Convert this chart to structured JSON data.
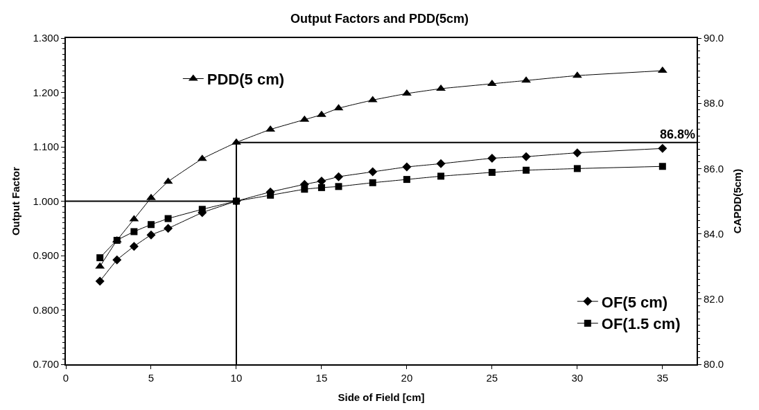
{
  "chart_data": {
    "type": "line",
    "title": "Output Factors and PDD(5cm)",
    "xlabel": "Side of Field [cm]",
    "ylabel": "Output Factor",
    "y2label": "CAPDD(5cm)",
    "x": [
      2,
      3,
      4,
      5,
      6,
      8,
      10,
      12,
      14,
      15,
      16,
      18,
      20,
      22,
      25,
      27,
      30,
      35
    ],
    "series": [
      {
        "name": "PDD(5 cm)",
        "color": "#000000",
        "marker": "triangle",
        "axis": "y2",
        "values": [
          83.0,
          83.8,
          84.45,
          85.1,
          85.6,
          86.3,
          86.8,
          87.2,
          87.5,
          87.65,
          87.85,
          88.1,
          88.3,
          88.45,
          88.6,
          88.7,
          88.85,
          89.0
        ]
      },
      {
        "name": "OF(5 cm)",
        "color": "#000000",
        "marker": "diamond",
        "values": [
          0.853,
          0.892,
          0.917,
          0.938,
          0.95,
          0.979,
          1.0,
          1.017,
          1.031,
          1.037,
          1.045,
          1.054,
          1.063,
          1.069,
          1.079,
          1.082,
          1.089,
          1.097
        ]
      },
      {
        "name": "OF(1.5 cm)",
        "color": "#000000",
        "marker": "square",
        "values": [
          0.896,
          0.928,
          0.944,
          0.957,
          0.968,
          0.985,
          1.0,
          1.011,
          1.022,
          1.025,
          1.027,
          1.034,
          1.04,
          1.046,
          1.053,
          1.057,
          1.06,
          1.064
        ]
      }
    ],
    "xlim": [
      0,
      37
    ],
    "xticks": [
      0,
      5,
      10,
      15,
      20,
      25,
      30,
      35
    ],
    "ylim": [
      0.7,
      1.3
    ],
    "yticks": [
      {
        "value": 0.7,
        "label": "0.700"
      },
      {
        "value": 0.8,
        "label": "0.800"
      },
      {
        "value": 0.9,
        "label": "0.900"
      },
      {
        "value": 1.0,
        "label": "1.000"
      },
      {
        "value": 1.1,
        "label": "1.100"
      },
      {
        "value": 1.2,
        "label": "1.200"
      },
      {
        "value": 1.3,
        "label": "1.300"
      }
    ],
    "y2lim": [
      80,
      90
    ],
    "y2ticks": [
      {
        "value": 80,
        "label": "80.0"
      },
      {
        "value": 82,
        "label": "82.0"
      },
      {
        "value": 84,
        "label": "84.0"
      },
      {
        "value": 86,
        "label": "86.0"
      },
      {
        "value": 88,
        "label": "88.0"
      },
      {
        "value": 90,
        "label": "90.0"
      }
    ],
    "ref_lines": [
      {
        "axis": "y",
        "value": 1.0,
        "color": "#000000"
      },
      {
        "axis": "x",
        "value": 10,
        "color": "#000000"
      },
      {
        "axis": "y2",
        "value": 86.8,
        "label": "86.8%",
        "color": "#000000"
      }
    ],
    "legend": "bottom right"
  }
}
